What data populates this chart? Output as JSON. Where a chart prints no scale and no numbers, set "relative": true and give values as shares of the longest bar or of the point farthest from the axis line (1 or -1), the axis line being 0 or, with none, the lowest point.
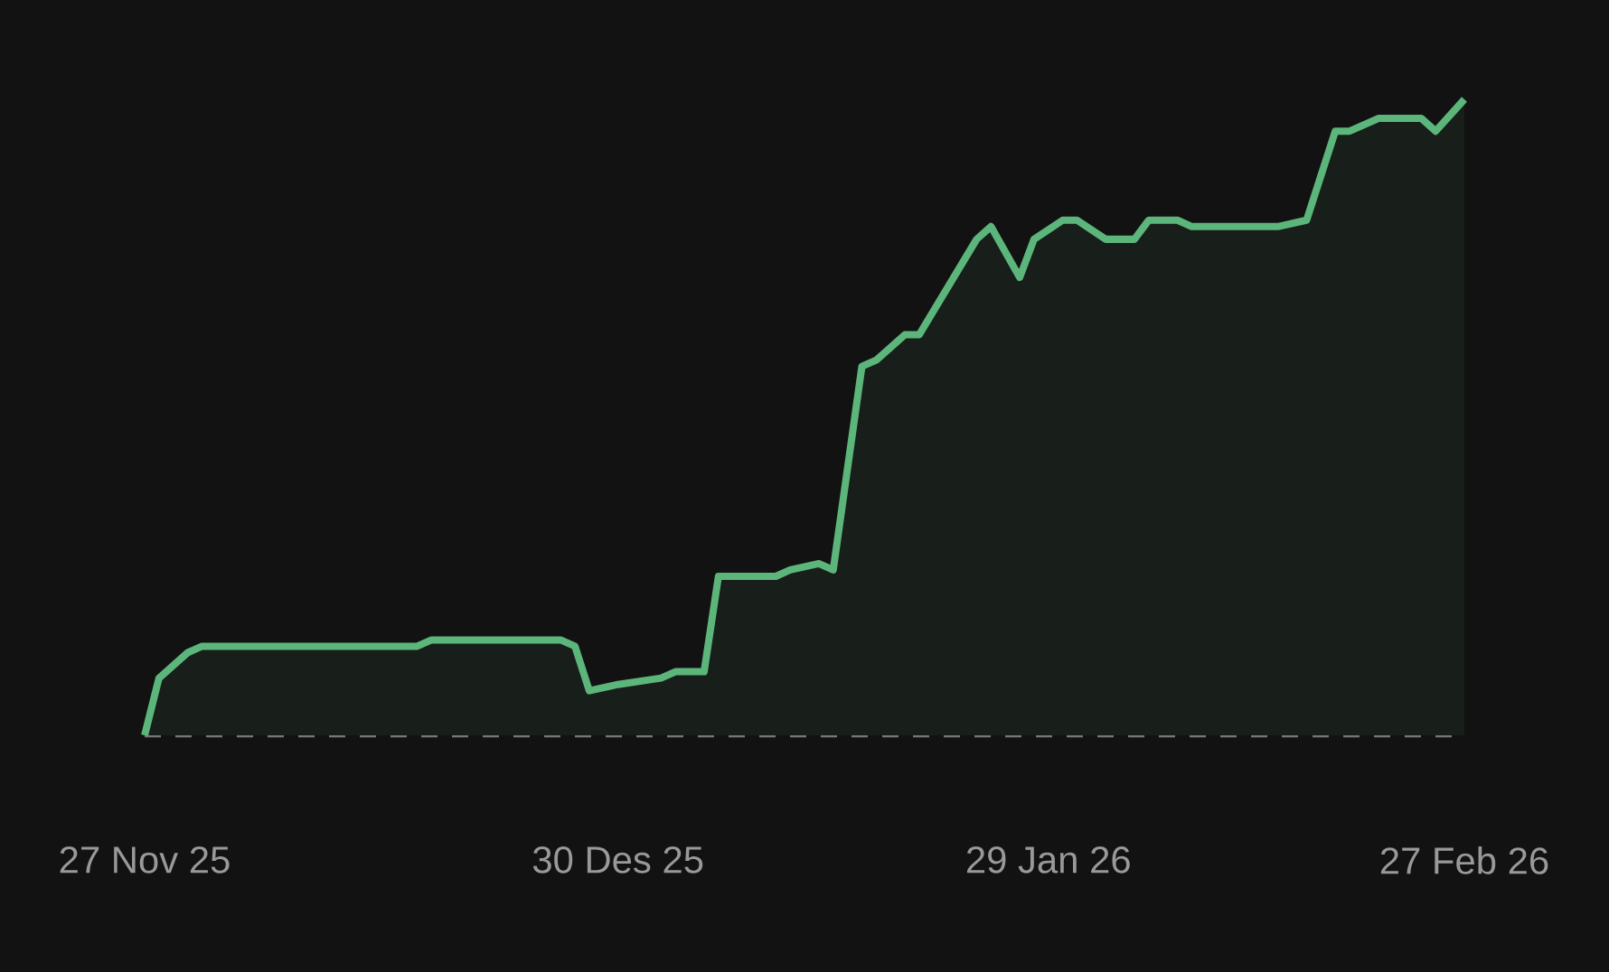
{
  "chart_data": {
    "type": "area",
    "relative": true,
    "x": [
      "2025-11-27",
      "2025-11-28",
      "2025-11-30",
      "2025-12-01",
      "2025-12-16",
      "2025-12-17",
      "2025-12-26",
      "2025-12-27",
      "2025-12-28",
      "2025-12-30",
      "2026-01-02",
      "2026-01-03",
      "2026-01-05",
      "2026-01-06",
      "2026-01-08",
      "2026-01-10",
      "2026-01-11",
      "2026-01-13",
      "2026-01-14",
      "2026-01-16",
      "2026-01-17",
      "2026-01-19",
      "2026-01-20",
      "2026-01-24",
      "2026-01-25",
      "2026-01-27",
      "2026-01-28",
      "2026-01-30",
      "2026-01-31",
      "2026-02-02",
      "2026-02-04",
      "2026-02-05",
      "2026-02-07",
      "2026-02-08",
      "2026-02-14",
      "2026-02-16",
      "2026-02-18",
      "2026-02-19",
      "2026-02-21",
      "2026-02-24",
      "2026-02-25",
      "2026-02-27"
    ],
    "series": [
      {
        "color": "#5cb57a",
        "values": [
          0,
          0.09,
          0.13,
          0.14,
          0.14,
          0.15,
          0.15,
          0.14,
          0.07,
          0.08,
          0.09,
          0.1,
          0.1,
          0.25,
          0.25,
          0.25,
          0.26,
          0.27,
          0.26,
          0.58,
          0.59,
          0.63,
          0.63,
          0.78,
          0.8,
          0.72,
          0.78,
          0.81,
          0.81,
          0.78,
          0.78,
          0.81,
          0.81,
          0.8,
          0.8,
          0.81,
          0.95,
          0.95,
          0.97,
          0.97,
          0.95,
          1
        ]
      }
    ],
    "xlim": [
      "2025-11-27",
      "2026-02-27"
    ],
    "xticks": [
      {
        "value": "2025-11-27",
        "label": "27 Nov 25"
      },
      {
        "value": "2025-12-30",
        "label": "30 Des 25"
      },
      {
        "value": "2026-01-29",
        "label": "29 Jan 26"
      },
      {
        "value": "2026-02-27",
        "label": "27 Feb 26"
      }
    ],
    "ref_lines": [
      {
        "axis": "y",
        "value": 0,
        "color": "#777777",
        "line_style": "dashed"
      }
    ],
    "grid": false,
    "marker": "none",
    "line_style": "solid"
  }
}
